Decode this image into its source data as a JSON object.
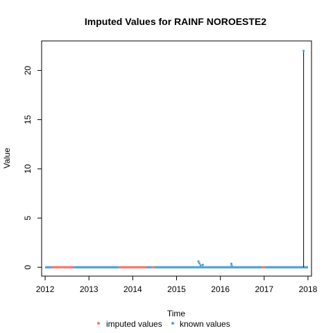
{
  "chart_data": {
    "type": "scatter",
    "title": "Imputed Values for  RAINF NOROESTE2",
    "xlabel": "Time",
    "ylabel": "Value",
    "xlim": [
      2011.92,
      2018.08
    ],
    "ylim": [
      -0.9,
      23.0
    ],
    "x_ticks": [
      2012,
      2013,
      2014,
      2015,
      2016,
      2017,
      2018
    ],
    "x_tick_labels": [
      "2012",
      "2013",
      "2014",
      "2015",
      "2016",
      "2017",
      "2018"
    ],
    "y_ticks": [
      0,
      5,
      10,
      15,
      20
    ],
    "y_tick_labels": [
      "0",
      "5",
      "10",
      "15",
      "20"
    ],
    "grid": false,
    "legend_position": "bottom",
    "series": [
      {
        "name": "imputed values",
        "color": "#F8766D",
        "segments": [
          {
            "x_start": 2012.15,
            "x_end": 2012.65,
            "value": 0
          },
          {
            "x_start": 2013.68,
            "x_end": 2014.32,
            "value": 0
          },
          {
            "x_start": 2014.42,
            "x_end": 2014.5,
            "value": 0
          },
          {
            "x_start": 2016.95,
            "x_end": 2017.02,
            "value": 0
          }
        ]
      },
      {
        "name": "known values",
        "color": "#4FA3D9",
        "segments": [
          {
            "x_start": 2012.0,
            "x_end": 2012.15,
            "value": 0
          },
          {
            "x_start": 2012.65,
            "x_end": 2013.68,
            "value": 0
          },
          {
            "x_start": 2014.32,
            "x_end": 2014.42,
            "value": 0
          },
          {
            "x_start": 2014.5,
            "x_end": 2016.95,
            "value": 0
          },
          {
            "x_start": 2017.02,
            "x_end": 2018.0,
            "value": 0
          }
        ],
        "points": [
          {
            "x": 2015.5,
            "y": 0.6
          },
          {
            "x": 2015.52,
            "y": 0.4
          },
          {
            "x": 2015.55,
            "y": 0.2
          },
          {
            "x": 2015.6,
            "y": 0.25
          },
          {
            "x": 2016.25,
            "y": 0.35
          },
          {
            "x": 2016.26,
            "y": 0.15
          },
          {
            "x": 2017.9,
            "y": 22.0
          }
        ]
      }
    ],
    "spike": {
      "x": 2017.9,
      "y": 22.0
    }
  }
}
